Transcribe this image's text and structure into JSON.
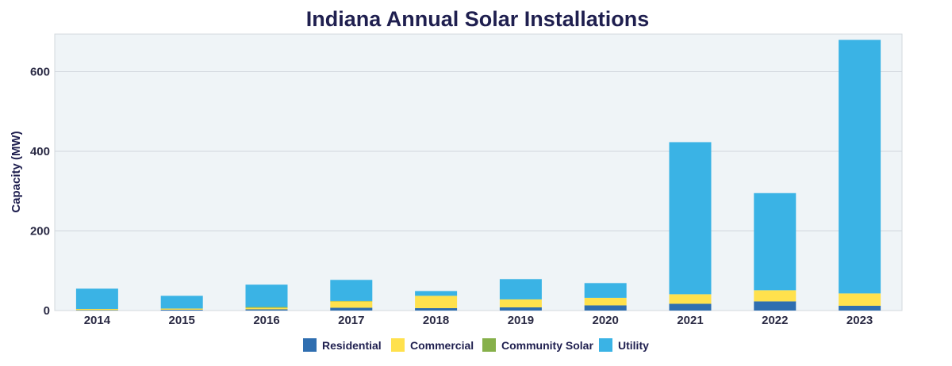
{
  "chart_data": {
    "type": "bar",
    "stacked": true,
    "title": "Indiana Annual Solar Installations",
    "ylabel": "Capacity (MW)",
    "xlabel": "",
    "ylim": [
      0,
      690
    ],
    "yticks": [
      0,
      200,
      400,
      600
    ],
    "grid": true,
    "legend_position": "bottom",
    "categories": [
      "2014",
      "2015",
      "2016",
      "2017",
      "2018",
      "2019",
      "2020",
      "2021",
      "2022",
      "2023"
    ],
    "series": [
      {
        "name": "Residential",
        "color": "#2f6eb0",
        "values": [
          1,
          2,
          3,
          7,
          6,
          8,
          13,
          17,
          23,
          12
        ]
      },
      {
        "name": "Commercial",
        "color": "#ffe14d",
        "values": [
          3,
          3,
          4,
          16,
          31,
          20,
          19,
          24,
          28,
          31
        ]
      },
      {
        "name": "Community Solar",
        "color": "#86b04a",
        "values": [
          0,
          0,
          2,
          1,
          0,
          0,
          0,
          0,
          0,
          0
        ]
      },
      {
        "name": "Utility",
        "color": "#3ab3e5",
        "values": [
          51,
          32,
          56,
          53,
          12,
          51,
          37,
          382,
          244,
          637
        ]
      }
    ]
  }
}
